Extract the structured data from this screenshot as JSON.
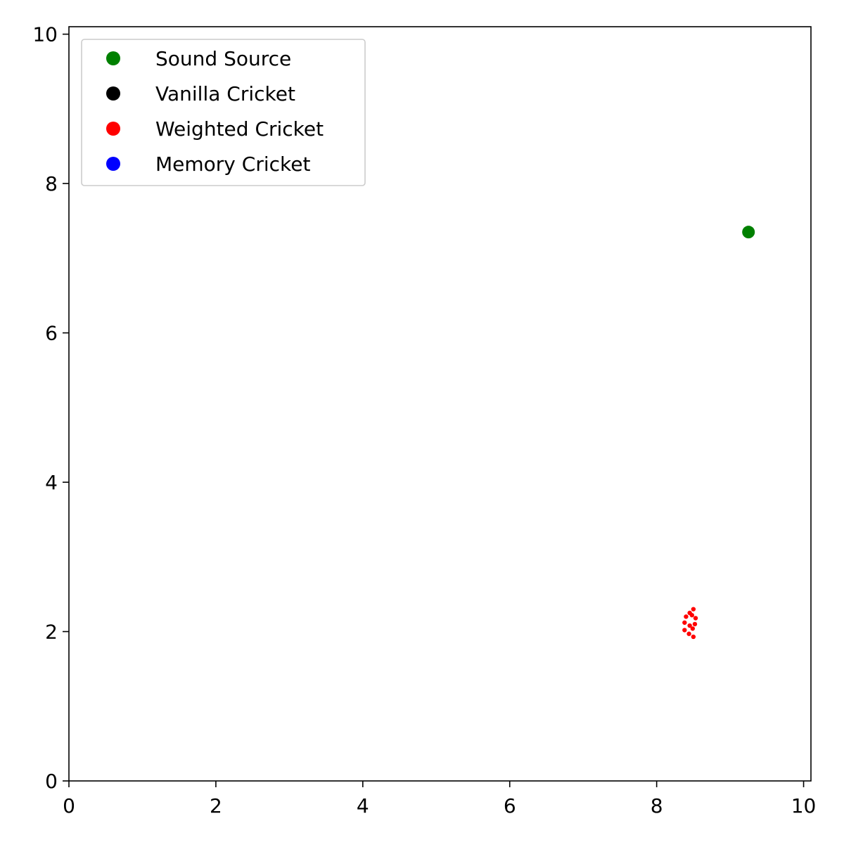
{
  "chart_data": {
    "type": "scatter",
    "title": "",
    "xlabel": "",
    "ylabel": "",
    "xlim": [
      0,
      10.1
    ],
    "ylim": [
      0,
      10.1
    ],
    "xticks": [
      0,
      2,
      4,
      6,
      8,
      10
    ],
    "yticks": [
      0,
      2,
      4,
      6,
      8,
      10
    ],
    "xtick_labels": [
      "0",
      "2",
      "4",
      "6",
      "8",
      "10"
    ],
    "ytick_labels": [
      "0",
      "2",
      "4",
      "6",
      "8",
      "10"
    ],
    "grid": false,
    "legend_position": "top-left",
    "legend": [
      {
        "label": "Sound Source",
        "color": "#008000"
      },
      {
        "label": "Vanilla Cricket",
        "color": "#000000"
      },
      {
        "label": "Weighted Cricket",
        "color": "#ff0000"
      },
      {
        "label": "Memory Cricket",
        "color": "#0000ff"
      }
    ],
    "series": [
      {
        "name": "Sound Source",
        "color": "#008000",
        "marker": "large-dot",
        "points": [
          [
            9.25,
            7.35
          ]
        ]
      },
      {
        "name": "Vanilla Cricket",
        "color": "#000000",
        "marker": "small-dot",
        "points": []
      },
      {
        "name": "Weighted Cricket",
        "color": "#ff0000",
        "marker": "small-dot",
        "points": [
          [
            8.5,
            2.3
          ],
          [
            8.45,
            2.25
          ],
          [
            8.48,
            2.22
          ],
          [
            8.4,
            2.2
          ],
          [
            8.53,
            2.18
          ],
          [
            8.38,
            2.12
          ],
          [
            8.52,
            2.1
          ],
          [
            8.45,
            2.08
          ],
          [
            8.49,
            2.04
          ],
          [
            8.38,
            2.02
          ],
          [
            8.44,
            1.97
          ],
          [
            8.5,
            1.93
          ]
        ]
      },
      {
        "name": "Memory Cricket",
        "color": "#0000ff",
        "marker": "small-dot",
        "points": []
      }
    ]
  }
}
